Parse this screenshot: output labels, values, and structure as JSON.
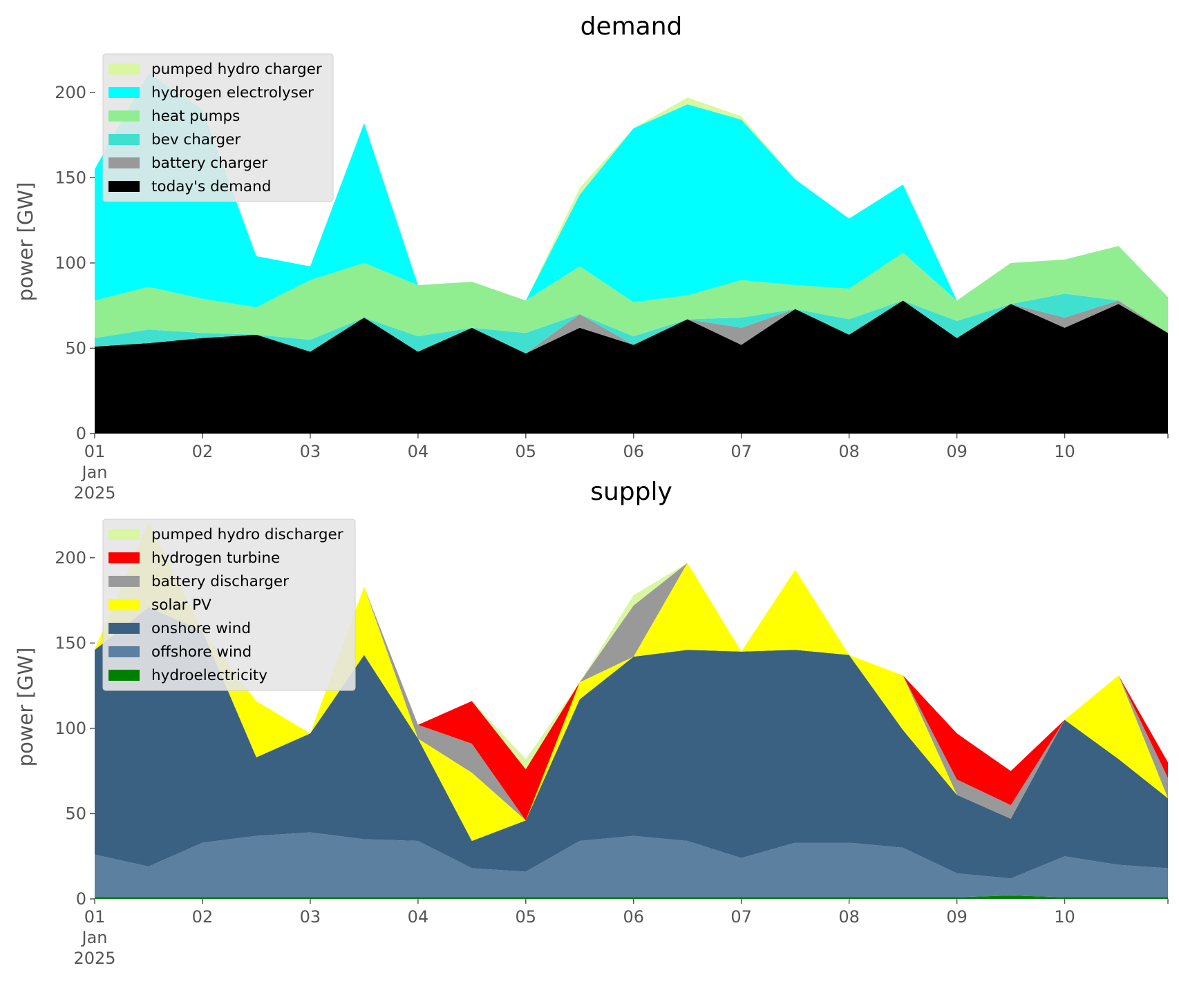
{
  "chart_data": [
    {
      "type": "area",
      "stacked": true,
      "title": "demand",
      "ylabel": "power [GW]",
      "xlabel": "",
      "ylim": [
        0,
        225
      ],
      "yticks": [
        0,
        50,
        100,
        150,
        200
      ],
      "x_start": "2025-01-01T00:00",
      "x_end": "2025-01-10T23:00",
      "xticks": [
        {
          "t": "2025-01-01",
          "label": "01",
          "sub": [
            "Jan",
            "2025"
          ]
        },
        {
          "t": "2025-01-02",
          "label": "02"
        },
        {
          "t": "2025-01-03",
          "label": "03"
        },
        {
          "t": "2025-01-04",
          "label": "04"
        },
        {
          "t": "2025-01-05",
          "label": "05"
        },
        {
          "t": "2025-01-06",
          "label": "06"
        },
        {
          "t": "2025-01-07",
          "label": "07"
        },
        {
          "t": "2025-01-08",
          "label": "08"
        },
        {
          "t": "2025-01-09",
          "label": "09"
        },
        {
          "t": "2025-01-10",
          "label": "10"
        }
      ],
      "grid": false,
      "legend_position": "top-left",
      "legend": [
        {
          "name": "pumped hydro charger",
          "color": "#d9f7a1"
        },
        {
          "name": "hydrogen electrolyser",
          "color": "#00ffff"
        },
        {
          "name": "heat pumps",
          "color": "#90ee90"
        },
        {
          "name": "bev charger",
          "color": "#40e0d0"
        },
        {
          "name": "battery charger",
          "color": "#999999"
        },
        {
          "name": "today's demand",
          "color": "#000000"
        }
      ],
      "x": [
        "2025-01-01T00:00",
        "2025-01-01T12:00",
        "2025-01-02T00:00",
        "2025-01-02T12:00",
        "2025-01-03T00:00",
        "2025-01-03T12:00",
        "2025-01-04T00:00",
        "2025-01-04T12:00",
        "2025-01-05T00:00",
        "2025-01-05T12:00",
        "2025-01-06T00:00",
        "2025-01-06T12:00",
        "2025-01-07T00:00",
        "2025-01-07T12:00",
        "2025-01-08T00:00",
        "2025-01-08T12:00",
        "2025-01-09T00:00",
        "2025-01-09T12:00",
        "2025-01-10T00:00",
        "2025-01-10T12:00",
        "2025-01-10T23:00"
      ],
      "series": [
        {
          "name": "today's demand",
          "color": "#000000",
          "values": [
            51,
            53,
            56,
            58,
            48,
            68,
            48,
            62,
            47,
            62,
            52,
            67,
            52,
            73,
            58,
            78,
            56,
            76,
            62,
            76,
            59
          ]
        },
        {
          "name": "battery charger",
          "color": "#999999",
          "values": [
            0,
            0,
            0,
            0,
            0,
            0,
            0,
            0,
            0,
            8,
            0,
            0,
            10,
            0,
            0,
            0,
            0,
            0,
            6,
            2,
            0
          ]
        },
        {
          "name": "bev charger",
          "color": "#40e0d0",
          "values": [
            5,
            8,
            3,
            0,
            7,
            0,
            9,
            0,
            12,
            0,
            5,
            0,
            6,
            0,
            9,
            0,
            10,
            0,
            14,
            0,
            0
          ]
        },
        {
          "name": "heat pumps",
          "color": "#90ee90",
          "values": [
            22,
            25,
            20,
            16,
            35,
            32,
            30,
            27,
            19,
            28,
            20,
            14,
            22,
            14,
            18,
            28,
            12,
            24,
            20,
            32,
            21
          ]
        },
        {
          "name": "hydrogen electrolyser",
          "color": "#00ffff",
          "values": [
            77,
            125,
            111,
            30,
            8,
            82,
            0,
            0,
            0,
            42,
            102,
            112,
            94,
            62,
            41,
            40,
            0,
            0,
            0,
            0,
            0
          ]
        },
        {
          "name": "pumped hydro charger",
          "color": "#d9f7a1",
          "values": [
            0,
            0,
            0,
            0,
            0,
            0,
            0,
            0,
            0,
            4,
            0,
            4,
            2,
            0,
            0,
            0,
            0,
            0,
            0,
            0,
            0
          ]
        }
      ]
    },
    {
      "type": "area",
      "stacked": true,
      "title": "supply",
      "ylabel": "power [GW]",
      "xlabel": "",
      "ylim": [
        0,
        225
      ],
      "yticks": [
        0,
        50,
        100,
        150,
        200
      ],
      "x_start": "2025-01-01T00:00",
      "x_end": "2025-01-10T23:00",
      "xticks": [
        {
          "t": "2025-01-01",
          "label": "01",
          "sub": [
            "Jan",
            "2025"
          ]
        },
        {
          "t": "2025-01-02",
          "label": "02"
        },
        {
          "t": "2025-01-03",
          "label": "03"
        },
        {
          "t": "2025-01-04",
          "label": "04"
        },
        {
          "t": "2025-01-05",
          "label": "05"
        },
        {
          "t": "2025-01-06",
          "label": "06"
        },
        {
          "t": "2025-01-07",
          "label": "07"
        },
        {
          "t": "2025-01-08",
          "label": "08"
        },
        {
          "t": "2025-01-09",
          "label": "09"
        },
        {
          "t": "2025-01-10",
          "label": "10"
        }
      ],
      "grid": false,
      "legend_position": "top-left",
      "legend": [
        {
          "name": "pumped hydro discharger",
          "color": "#d9f7a1"
        },
        {
          "name": "hydrogen turbine",
          "color": "#ff0000"
        },
        {
          "name": "battery discharger",
          "color": "#999999"
        },
        {
          "name": "solar PV",
          "color": "#ffff00"
        },
        {
          "name": "onshore wind",
          "color": "#3b6182"
        },
        {
          "name": "offshore wind",
          "color": "#5b80a0"
        },
        {
          "name": "hydroelectricity",
          "color": "#008000"
        }
      ],
      "x": [
        "2025-01-01T00:00",
        "2025-01-01T12:00",
        "2025-01-02T00:00",
        "2025-01-02T12:00",
        "2025-01-03T00:00",
        "2025-01-03T12:00",
        "2025-01-04T00:00",
        "2025-01-04T12:00",
        "2025-01-05T00:00",
        "2025-01-05T12:00",
        "2025-01-06T00:00",
        "2025-01-06T12:00",
        "2025-01-07T00:00",
        "2025-01-07T12:00",
        "2025-01-08T00:00",
        "2025-01-08T12:00",
        "2025-01-09T00:00",
        "2025-01-09T12:00",
        "2025-01-10T00:00",
        "2025-01-10T12:00",
        "2025-01-10T23:00"
      ],
      "series": [
        {
          "name": "hydroelectricity",
          "color": "#008000",
          "values": [
            1,
            1,
            1,
            1,
            1,
            1,
            1,
            1,
            1,
            1,
            1,
            1,
            1,
            1,
            1,
            1,
            1,
            2,
            1,
            1,
            1
          ]
        },
        {
          "name": "offshore wind",
          "color": "#5b80a0",
          "values": [
            25,
            18,
            32,
            36,
            38,
            34,
            33,
            17,
            15,
            33,
            36,
            33,
            23,
            32,
            32,
            29,
            14,
            10,
            24,
            19,
            17
          ]
        },
        {
          "name": "onshore wind",
          "color": "#3b6182",
          "values": [
            120,
            152,
            124,
            46,
            58,
            108,
            60,
            16,
            30,
            83,
            105,
            112,
            121,
            113,
            110,
            69,
            46,
            35,
            80,
            62,
            41
          ]
        },
        {
          "name": "solar PV",
          "color": "#ffff00",
          "values": [
            0,
            50,
            0,
            33,
            0,
            40,
            0,
            40,
            0,
            10,
            0,
            51,
            0,
            47,
            0,
            32,
            0,
            0,
            0,
            49,
            0
          ]
        },
        {
          "name": "battery discharger",
          "color": "#999999",
          "values": [
            0,
            0,
            0,
            0,
            0,
            0,
            8,
            17,
            0,
            0,
            30,
            0,
            0,
            0,
            0,
            0,
            9,
            8,
            0,
            0,
            12
          ]
        },
        {
          "name": "hydrogen turbine",
          "color": "#ff0000",
          "values": [
            0,
            0,
            0,
            0,
            0,
            0,
            0,
            25,
            30,
            0,
            0,
            0,
            0,
            0,
            0,
            0,
            27,
            20,
            0,
            0,
            9
          ]
        },
        {
          "name": "pumped hydro discharger",
          "color": "#d9f7a1",
          "values": [
            0,
            0,
            0,
            0,
            0,
            0,
            0,
            0,
            6,
            0,
            6,
            0,
            0,
            0,
            0,
            0,
            0,
            0,
            0,
            0,
            0
          ]
        }
      ]
    }
  ]
}
